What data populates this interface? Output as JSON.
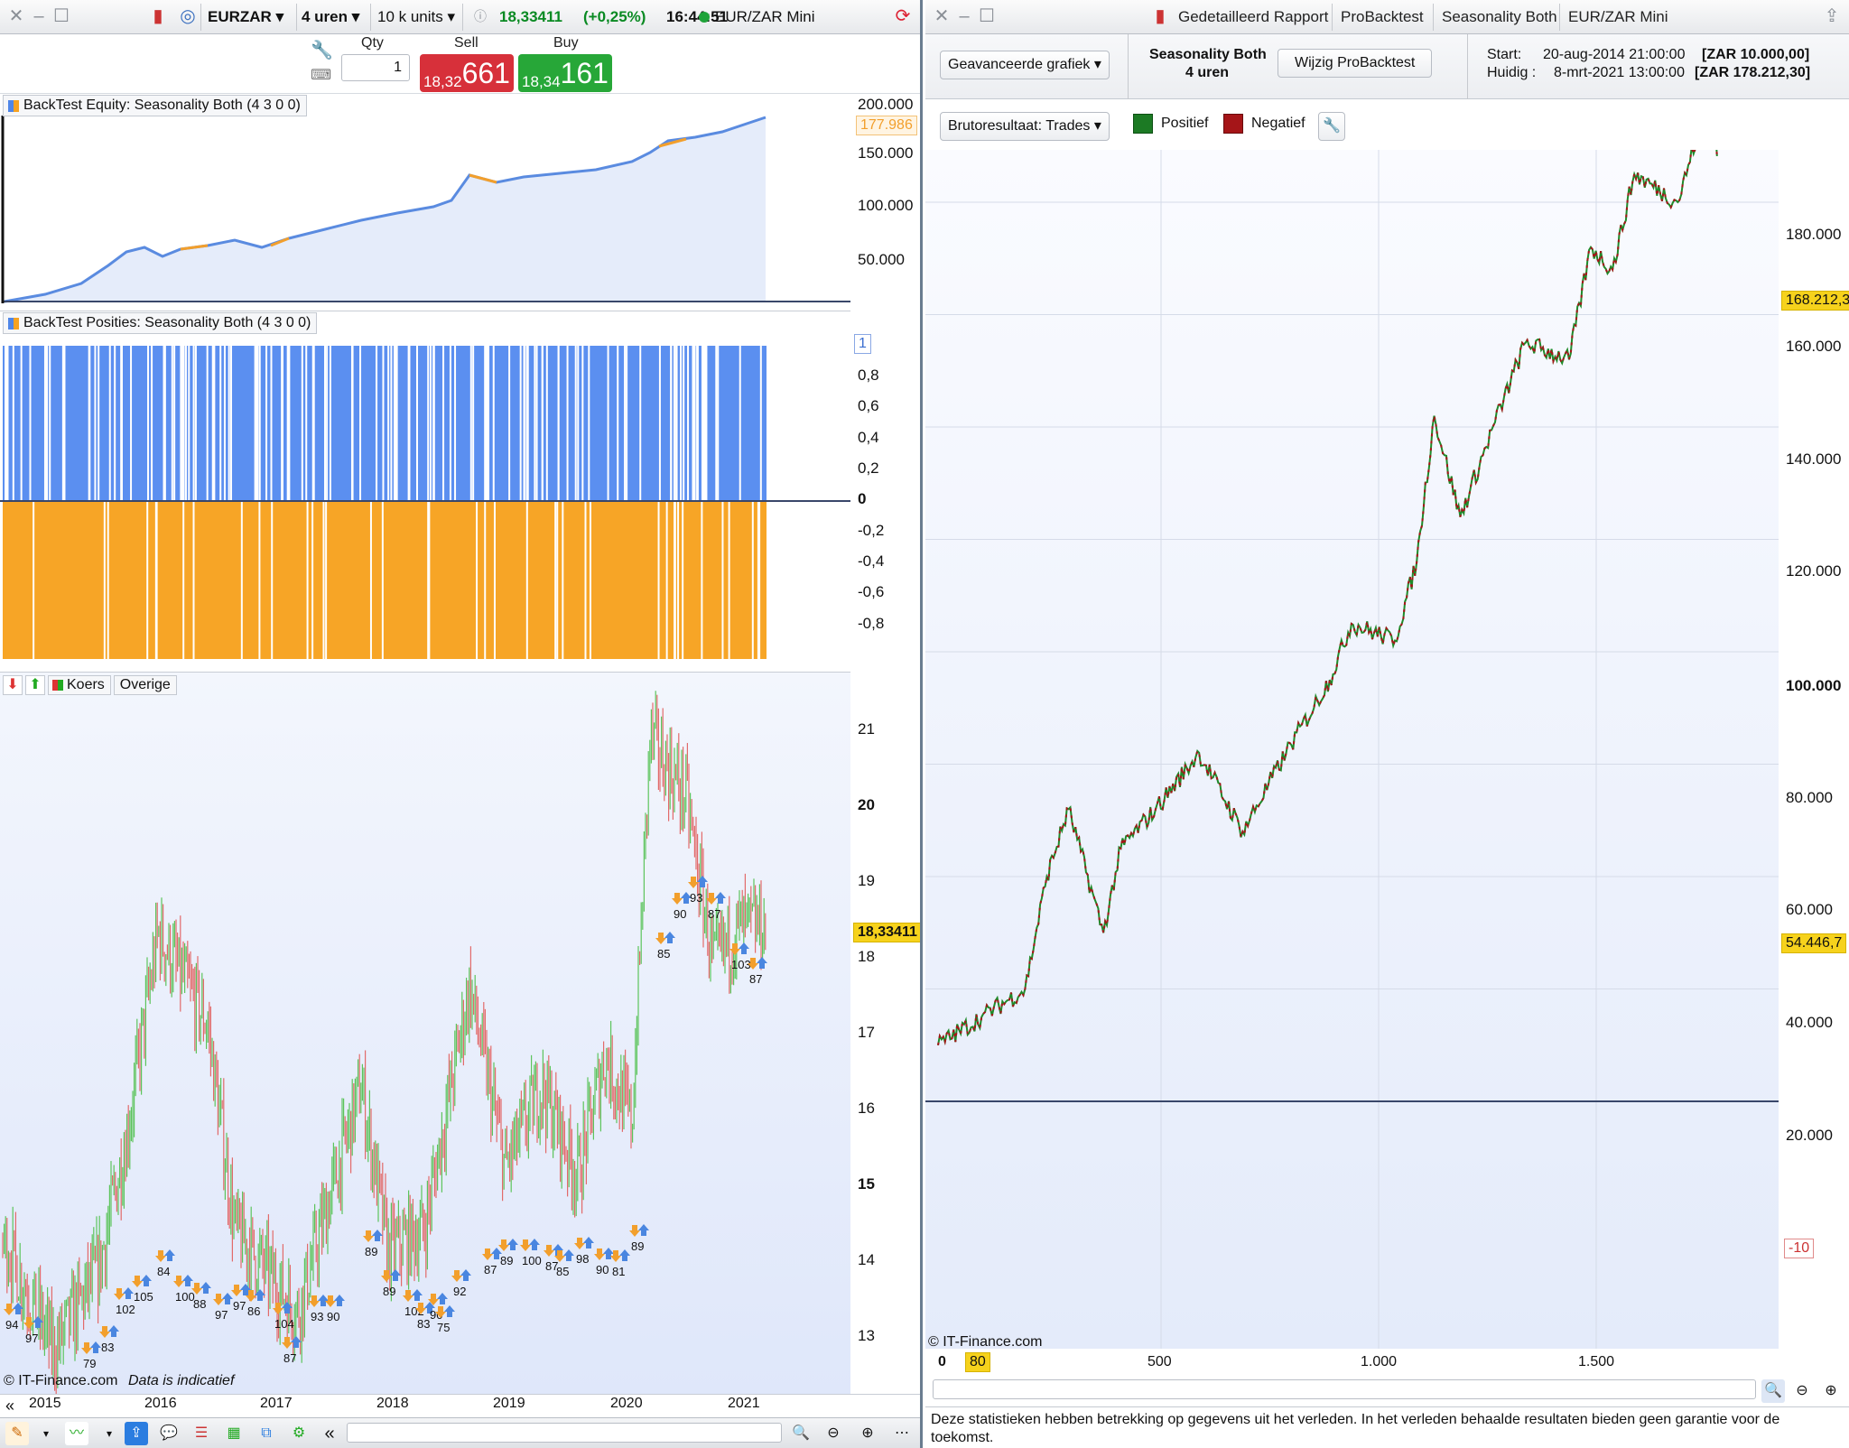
{
  "left": {
    "titlebar": {
      "symbol": "EURZAR",
      "timeframe": "4 uren",
      "units": "10 k units",
      "price": "18,33411",
      "change": "(+0,25%)",
      "time": "16:44:51",
      "instrument": "EUR/ZAR Mini"
    },
    "order": {
      "qty_label": "Qty",
      "qty_value": "1",
      "sell_label": "Sell",
      "sell_small": "18,32",
      "sell_big": "661",
      "buy_label": "Buy",
      "buy_small": "18,34",
      "buy_big": "161"
    },
    "equity_panel": {
      "title": "BackTest Equity: Seasonality Both (4 3 0 0)",
      "ticks": [
        "200.000",
        "150.000",
        "100.000",
        "50.000"
      ],
      "current": "177.986"
    },
    "positions_panel": {
      "title": "BackTest Posities: Seasonality Both (4 3 0 0)",
      "ticks": [
        "1",
        "0,8",
        "0,6",
        "0,4",
        "0,2",
        "0",
        "-0,2",
        "-0,4",
        "-0,6",
        "-0,8"
      ]
    },
    "price_panel": {
      "tab_koers": "Koers",
      "tab_overige": "Overige",
      "ticks": [
        "21",
        "20",
        "19",
        "18",
        "17",
        "16",
        "15",
        "14",
        "13"
      ],
      "current": "18,33411",
      "copyright": "© IT-Finance.com",
      "disclaimer": "Data is indicatief",
      "x_labels": [
        "2015",
        "2016",
        "2017",
        "2018",
        "2019",
        "2020",
        "2021"
      ],
      "trade_labels": [
        "94",
        "97",
        "79",
        "83",
        "102",
        "105",
        "84",
        "100",
        "88",
        "97",
        "97",
        "86",
        "104",
        "87",
        "93",
        "90",
        "89",
        "89",
        "102",
        "83",
        "90",
        "75",
        "92",
        "87",
        "89",
        "100",
        "87",
        "85",
        "98",
        "90",
        "81",
        "89",
        "85",
        "90",
        "93",
        "87",
        "103",
        "87"
      ]
    },
    "nav_left": "«",
    "nav_mid": "«"
  },
  "right": {
    "titlebar": {
      "tab1": "Gedetailleerd Rapport",
      "tab2": "ProBacktest",
      "tab3": "Seasonality Both",
      "tab4": "EUR/ZAR Mini"
    },
    "header": {
      "chart_select": "Geavanceerde grafiek",
      "strategy_name": "Seasonality Both",
      "strategy_tf": "4 uren",
      "modify_btn": "Wijzig ProBacktest",
      "start_label": "Start:",
      "start_date": "20-aug-2014 21:00:00",
      "start_value": "[ZAR 10.000,00]",
      "now_label": "Huidig :",
      "now_date": "8-mrt-2021 13:00:00",
      "now_value": "[ZAR 178.212,30]"
    },
    "filter": {
      "select": "Brutoresultaat: Trades",
      "positive": "Positief",
      "negative": "Negatief"
    },
    "axis": {
      "ticks": [
        "180.000",
        "160.000",
        "140.000",
        "120.000",
        "100.000",
        "80.000",
        "60.000",
        "40.000",
        "20.000"
      ],
      "tag_top": "168.212,3",
      "tag_mid": "54.446,7",
      "tag_low": "-10"
    },
    "copyright": "© IT-Finance.com",
    "x_labels": [
      "0",
      "80",
      "500",
      "1.000",
      "1.500"
    ],
    "footer": "Deze statistieken hebben betrekking op gegevens uit het verleden. In het verleden behaalde resultaten bieden geen garantie voor de toekomst."
  },
  "chart_data": [
    {
      "type": "area",
      "title": "BackTest Equity: Seasonality Both (4 3 0 0)",
      "x": [
        "2015",
        "2016",
        "2017",
        "2018",
        "2019",
        "2020",
        "2021"
      ],
      "series": [
        {
          "values": [
            12000,
            50000,
            48000,
            70000,
            110000,
            128000,
            158000
          ]
        }
      ],
      "ylim": [
        0,
        200000
      ]
    },
    {
      "type": "line",
      "title": "",
      "xlim": [
        0,
        1900
      ],
      "ylim": [
        -20000,
        200000
      ],
      "series": [
        {
          "x": [
            0,
            100,
            200,
            250,
            300,
            380,
            420,
            500,
            600,
            700,
            800,
            900,
            950,
            1050,
            1100,
            1140,
            1200,
            1300,
            1350,
            1450,
            1500,
            1550,
            1600,
            1700,
            1760,
            1780,
            1790
          ],
          "values": [
            10000,
            15000,
            20000,
            40000,
            52000,
            30000,
            45000,
            52000,
            62000,
            48000,
            62000,
            75000,
            85000,
            82000,
            96000,
            122000,
            104000,
            125000,
            135000,
            132000,
            152000,
            148000,
            165000,
            160000,
            176000,
            175000,
            168212
          ]
        }
      ]
    }
  ]
}
